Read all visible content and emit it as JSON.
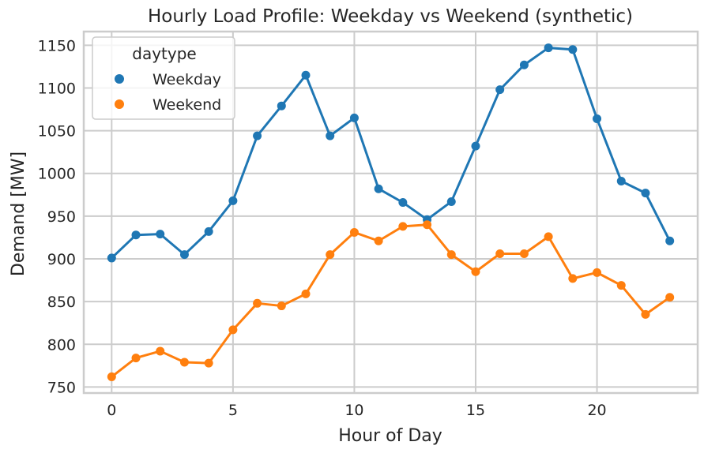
{
  "chart_data": {
    "type": "line",
    "title": "Hourly Load Profile: Weekday vs Weekend (synthetic)",
    "xlabel": "Hour of Day",
    "ylabel": "Demand [MW]",
    "x": [
      0,
      1,
      2,
      3,
      4,
      5,
      6,
      7,
      8,
      9,
      10,
      11,
      12,
      13,
      14,
      15,
      16,
      17,
      18,
      19,
      20,
      21,
      22,
      23
    ],
    "xlim": [
      -1.15,
      24.15
    ],
    "ylim": [
      743,
      1166
    ],
    "xticks": [
      0,
      5,
      10,
      15,
      20
    ],
    "yticks": [
      750,
      800,
      850,
      900,
      950,
      1000,
      1050,
      1100,
      1150
    ],
    "grid": true,
    "legend": {
      "title": "daytype",
      "placement": "top-left"
    },
    "series": [
      {
        "name": "Weekday",
        "color": "#1f77b4",
        "values": [
          901,
          928,
          929,
          905,
          932,
          968,
          1044,
          1079,
          1115,
          1044,
          1065,
          982,
          966,
          946,
          967,
          1032,
          1098,
          1127,
          1147,
          1145,
          1064,
          991,
          977,
          921
        ]
      },
      {
        "name": "Weekend",
        "color": "#ff7f0e",
        "values": [
          762,
          784,
          792,
          779,
          778,
          817,
          848,
          845,
          859,
          905,
          931,
          921,
          938,
          940,
          905,
          885,
          906,
          906,
          926,
          877,
          884,
          869,
          835,
          855
        ]
      }
    ]
  }
}
